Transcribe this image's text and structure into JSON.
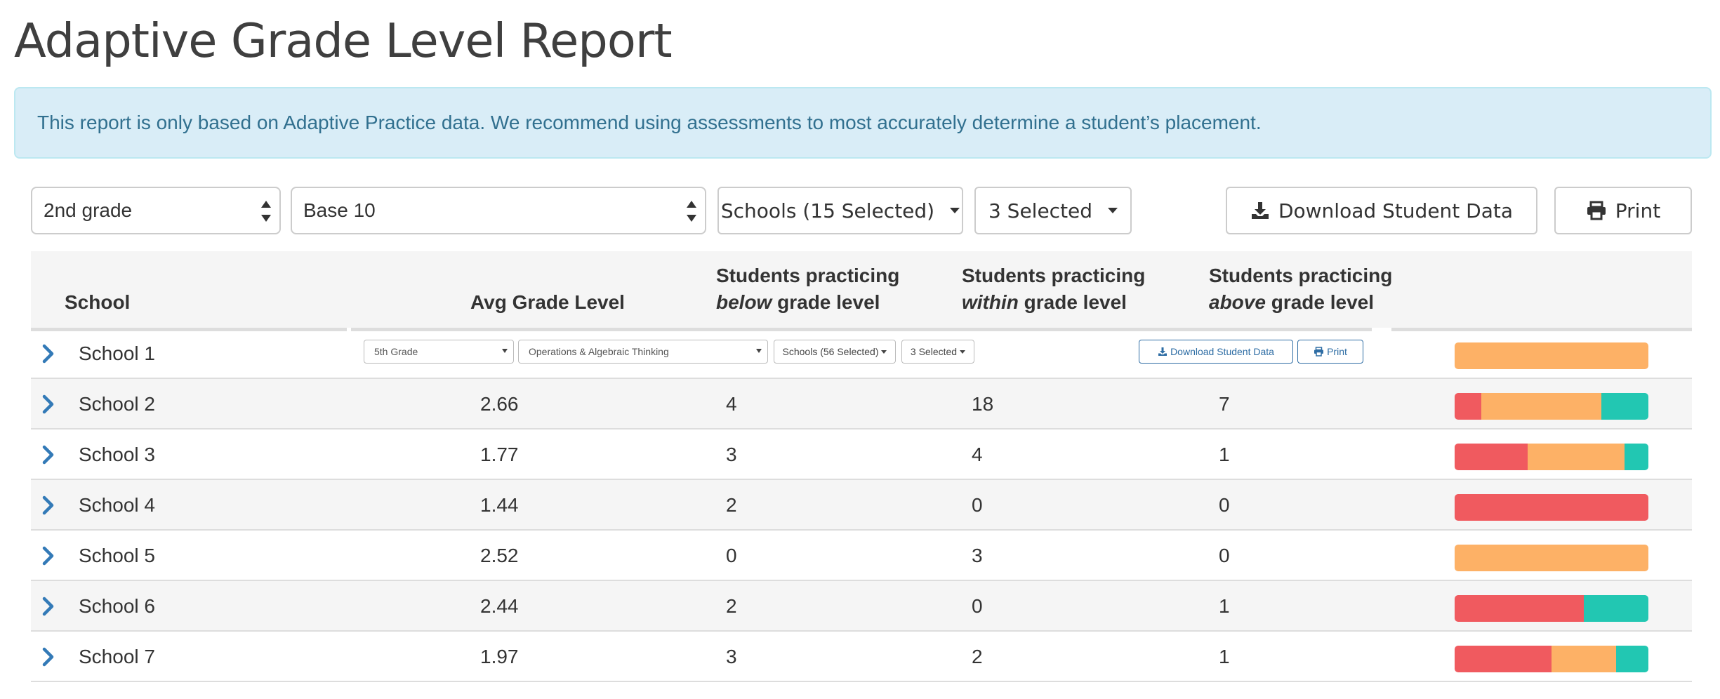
{
  "page": {
    "title": "Adaptive Grade Level Report",
    "notice": "This report is only based on Adaptive Practice data. We recommend using assessments to most accurately determine a student’s placement."
  },
  "filters": {
    "grade": "2nd grade",
    "domain": "Base 10",
    "schools": "Schools (15 Selected)",
    "selected": "3 Selected",
    "download_label": "Download Student Data",
    "print_label": "Print"
  },
  "table": {
    "headers": {
      "school": "School",
      "avg": "Avg Grade Level",
      "below_pre": "Students practicing",
      "below_em": "below",
      "below_post": "grade level",
      "within_pre": "Students practicing",
      "within_em": "within",
      "within_post": "grade level",
      "above_pre": "Students practicing",
      "above_em": "above",
      "above_post": "grade level"
    },
    "expanded_row_filters": {
      "grade": "5th Grade",
      "domain": "Operations & Algebraic Thinking",
      "schools": "Schools (56 Selected)",
      "selected": "3 Selected",
      "download_label": "Download Student Data",
      "print_label": "Print"
    },
    "rows": [
      {
        "school": "School 1",
        "avg": "",
        "below": "",
        "within": "",
        "above": "",
        "bar": {
          "below": 0,
          "within": 1,
          "above": 0
        }
      },
      {
        "school": "School 2",
        "avg": "2.66",
        "below": "4",
        "within": "18",
        "above": "7",
        "bar": {
          "below": 4,
          "within": 18,
          "above": 7
        }
      },
      {
        "school": "School 3",
        "avg": "1.77",
        "below": "3",
        "within": "4",
        "above": "1",
        "bar": {
          "below": 3,
          "within": 4,
          "above": 1
        }
      },
      {
        "school": "School 4",
        "avg": "1.44",
        "below": "2",
        "within": "0",
        "above": "0",
        "bar": {
          "below": 2,
          "within": 0,
          "above": 0
        }
      },
      {
        "school": "School 5",
        "avg": "2.52",
        "below": "0",
        "within": "3",
        "above": "0",
        "bar": {
          "below": 0,
          "within": 3,
          "above": 0
        }
      },
      {
        "school": "School 6",
        "avg": "2.44",
        "below": "2",
        "within": "0",
        "above": "1",
        "bar": {
          "below": 2,
          "within": 0,
          "above": 1
        }
      },
      {
        "school": "School 7",
        "avg": "1.97",
        "below": "3",
        "within": "2",
        "above": "1",
        "bar": {
          "below": 3,
          "within": 2,
          "above": 1
        }
      }
    ]
  },
  "colors": {
    "below": "#f05a5f",
    "within": "#fdb166",
    "above": "#22c7b2",
    "accent": "#337ab7",
    "alert_bg": "#d9edf7",
    "alert_text": "#31708f"
  },
  "icons": {
    "row_expand": "chevron-right-icon",
    "download": "download-icon",
    "print": "printer-icon",
    "select_arrows": "updown-arrows-icon",
    "dropdown": "caret-down-icon"
  }
}
